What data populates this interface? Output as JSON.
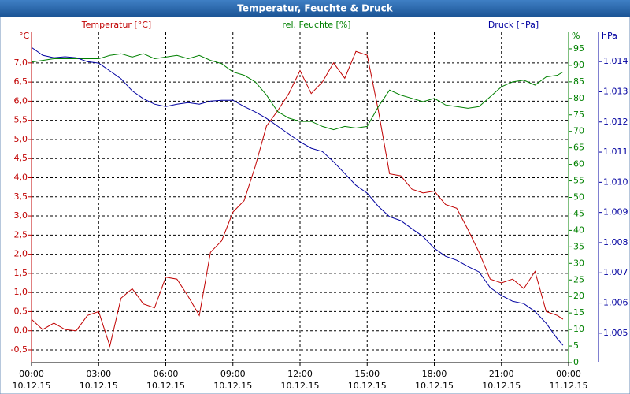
{
  "chart_data": {
    "type": "line",
    "title": "Temperatur, Feuchte & Druck",
    "y_unit": "°C",
    "y2_unit": "%",
    "y3_unit": "hPa",
    "x": [
      0,
      0.5,
      1,
      1.5,
      2,
      2.5,
      3,
      3.5,
      4,
      4.5,
      5,
      5.5,
      6,
      6.5,
      7,
      7.5,
      8,
      8.5,
      9,
      9.5,
      10,
      10.5,
      11,
      11.5,
      12,
      12.5,
      13,
      13.5,
      14,
      14.5,
      15,
      15.5,
      16,
      16.5,
      17,
      17.5,
      18,
      18.5,
      19,
      19.5,
      20,
      20.5,
      21,
      21.5,
      22,
      22.5,
      23,
      23.5,
      23.75
    ],
    "xlim": [
      0,
      24
    ],
    "xticks": [
      {
        "value": 0,
        "label": "00:00",
        "date": "10.12.15"
      },
      {
        "value": 3,
        "label": "03:00",
        "date": "10.12.15"
      },
      {
        "value": 6,
        "label": "06:00",
        "date": "10.12.15"
      },
      {
        "value": 9,
        "label": "09:00",
        "date": "10.12.15"
      },
      {
        "value": 12,
        "label": "12:00",
        "date": "10.12.15"
      },
      {
        "value": 15,
        "label": "15:00",
        "date": "10.12.15"
      },
      {
        "value": 18,
        "label": "18:00",
        "date": "10.12.15"
      },
      {
        "value": 21,
        "label": "21:00",
        "date": "10.12.15"
      },
      {
        "value": 24,
        "label": "00:00",
        "date": "11.12.15"
      }
    ],
    "ylim": [
      -0.83,
      7.8
    ],
    "yticks": [
      {
        "value": -0.5,
        "label": "-0,5"
      },
      {
        "value": 0,
        "label": "0,0"
      },
      {
        "value": 0.5,
        "label": "0,5"
      },
      {
        "value": 1,
        "label": "1,0"
      },
      {
        "value": 1.5,
        "label": "1,5"
      },
      {
        "value": 2,
        "label": "2,0"
      },
      {
        "value": 2.5,
        "label": "2,5"
      },
      {
        "value": 3,
        "label": "3,0"
      },
      {
        "value": 3.5,
        "label": "3,5"
      },
      {
        "value": 4,
        "label": "4,0"
      },
      {
        "value": 4.5,
        "label": "4,5"
      },
      {
        "value": 5,
        "label": "5,0"
      },
      {
        "value": 5.5,
        "label": "5,5"
      },
      {
        "value": 6,
        "label": "6,0"
      },
      {
        "value": 6.5,
        "label": "6,5"
      },
      {
        "value": 7,
        "label": "7,0"
      }
    ],
    "y2lim": [
      0,
      100
    ],
    "y2ticks": [
      0,
      5,
      10,
      15,
      20,
      25,
      30,
      35,
      40,
      45,
      50,
      55,
      60,
      65,
      70,
      75,
      80,
      85,
      90,
      95
    ],
    "y3lim": [
      1.00403,
      1.01497
    ],
    "y3ticks": [
      1.005,
      1.006,
      1.007,
      1.008,
      1.009,
      {
        "value": 1.01,
        "label": "1.010"
      },
      1.011,
      1.012,
      1.013,
      1.014
    ],
    "grid": true,
    "series": [
      {
        "name": "Temperatur [°C]",
        "color": "#c00000",
        "axis": "y",
        "values": [
          0.3,
          0.03,
          0.2,
          0.03,
          0.0,
          0.4,
          0.5,
          -0.4,
          0.85,
          1.1,
          0.7,
          0.6,
          1.4,
          1.35,
          0.9,
          0.4,
          2.05,
          2.35,
          3.1,
          3.4,
          4.3,
          5.35,
          5.75,
          6.2,
          6.8,
          6.2,
          6.5,
          7.0,
          6.6,
          7.3,
          7.2,
          5.75,
          4.1,
          4.05,
          3.7,
          3.6,
          3.65,
          3.3,
          3.2,
          2.65,
          2.05,
          1.35,
          1.25,
          1.35,
          1.1,
          1.55,
          0.5,
          0.4,
          0.3
        ]
      },
      {
        "name": "rel. Feuchte [%]",
        "color": "#008000",
        "axis": "y2",
        "values": [
          91,
          91.5,
          92,
          92,
          92,
          92,
          92,
          93,
          93.5,
          92.5,
          93.5,
          92,
          92.5,
          93,
          92,
          93,
          91.5,
          90.5,
          88,
          87,
          85,
          81,
          76,
          74,
          73,
          73,
          71.5,
          70.5,
          71.5,
          71,
          71.5,
          77.5,
          82.5,
          81,
          80,
          79,
          80,
          78,
          77.5,
          77,
          77.5,
          80.5,
          83.5,
          85,
          85.5,
          84,
          86.5,
          87,
          88
        ]
      },
      {
        "name": "Druck [hPa]",
        "color": "#0000a0",
        "axis": "y3",
        "values": [
          1.01447,
          1.01421,
          1.01413,
          1.01416,
          1.01413,
          1.014,
          1.01395,
          1.01369,
          1.01343,
          1.01303,
          1.01277,
          1.01259,
          1.01251,
          1.01259,
          1.01264,
          1.01259,
          1.01269,
          1.01272,
          1.01272,
          1.01251,
          1.01233,
          1.01212,
          1.01186,
          1.0116,
          1.01134,
          1.01113,
          1.01102,
          1.01068,
          1.01029,
          1.0099,
          1.00964,
          1.0092,
          1.00886,
          1.00873,
          1.00846,
          1.0082,
          1.00781,
          1.00755,
          1.00742,
          1.00721,
          1.00703,
          1.00651,
          1.00625,
          1.00606,
          1.00598,
          1.00572,
          1.00533,
          1.00481,
          1.0046
        ]
      }
    ]
  }
}
